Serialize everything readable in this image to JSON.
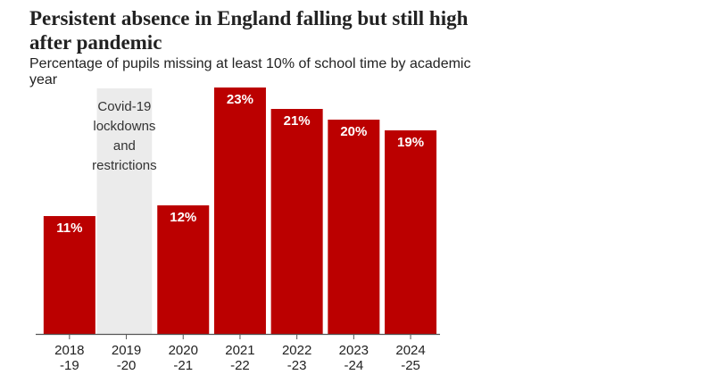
{
  "header": {
    "title": "Persistent absence in England falling but still high after pandemic",
    "subtitle": "Percentage of pupils missing at least 10% of school time by academic year"
  },
  "colors": {
    "bar": "#bb0000",
    "shade": "#ebebeb",
    "axis": "#555555"
  },
  "chart_data": {
    "type": "bar",
    "title": "Persistent absence in England falling but still high after pandemic",
    "subtitle": "Percentage of pupils missing at least 10% of school time by academic year",
    "categories": [
      "2018\n-19",
      "2019\n-20",
      "2020\n-21",
      "2021\n-22",
      "2022\n-23",
      "2023\n-24",
      "2024\n-25"
    ],
    "values": [
      11,
      null,
      12,
      23,
      21,
      20,
      19
    ],
    "value_labels": [
      "11%",
      "",
      "12%",
      "23%",
      "21%",
      "20%",
      "19%"
    ],
    "ylim": [
      0,
      25
    ],
    "grid": false,
    "annotations": [
      {
        "category_index": 1,
        "text": "Covid-19 lockdowns and restrictions",
        "lines": [
          "Covid-19",
          "lockdowns",
          "and",
          "restrictions"
        ]
      }
    ]
  }
}
